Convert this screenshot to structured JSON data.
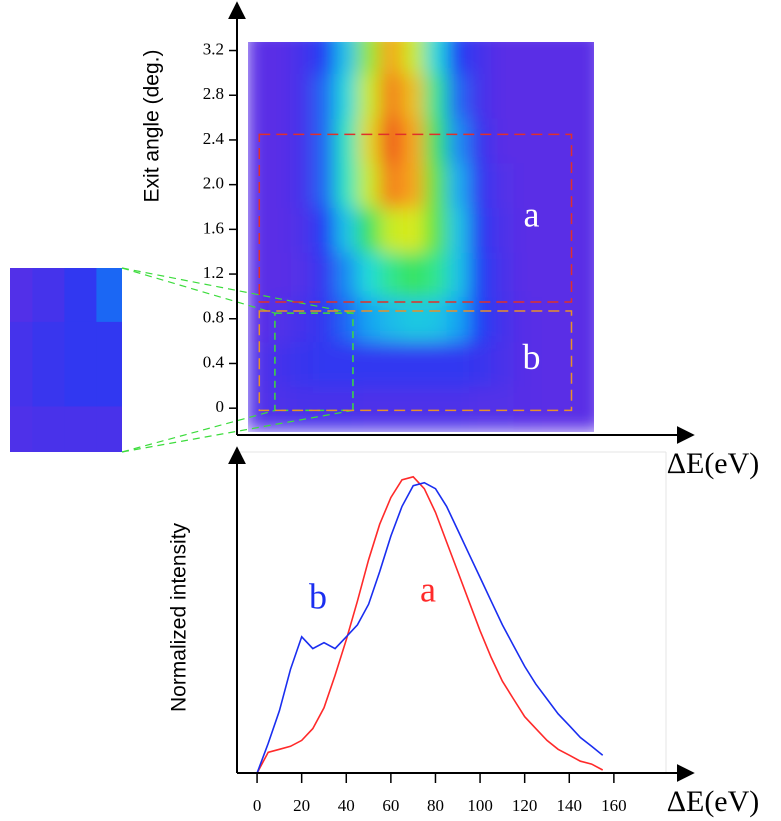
{
  "chart_data": [
    {
      "type": "heatmap",
      "xlabel": "ΔE(eV)",
      "ylabel": "Exit angle (deg.)",
      "xlim": [
        -9,
        191
      ],
      "ylim": [
        -0.24,
        3.5
      ],
      "yticks": [
        0,
        0.4,
        0.8,
        1.2,
        1.6,
        {
          "value": 2,
          "label": "2.0"
        },
        2.4,
        2.8,
        3.2
      ],
      "colorscale": [
        "#5a2ee6",
        "#1f3cf5",
        "#16a8f2",
        "#22e6d2",
        "#3de34a",
        "#d8ec1e",
        "#f7a21a",
        "#ee2a1a"
      ],
      "x": [
        0,
        10,
        20,
        30,
        40,
        50,
        60,
        70,
        80,
        90,
        100,
        110,
        120,
        130,
        140,
        150
      ],
      "y": [
        0,
        0.4,
        0.8,
        1.2,
        1.6,
        2.0,
        2.4,
        2.8,
        3.2
      ],
      "z": [
        [
          0.02,
          0.03,
          0.04,
          0.04,
          0.04,
          0.03,
          0.03,
          0.03,
          0.03,
          0.03,
          0.02,
          0.02,
          0.01,
          0,
          0,
          0
        ],
        [
          0.02,
          0.05,
          0.08,
          0.1,
          0.1,
          0.1,
          0.1,
          0.1,
          0.1,
          0.1,
          0.08,
          0.04,
          0.01,
          0,
          0,
          0
        ],
        [
          0,
          0.02,
          0.05,
          0.1,
          0.2,
          0.28,
          0.33,
          0.36,
          0.35,
          0.28,
          0.15,
          0.05,
          0.01,
          0,
          0,
          0
        ],
        [
          0,
          0,
          0.02,
          0.1,
          0.25,
          0.4,
          0.5,
          0.55,
          0.5,
          0.35,
          0.15,
          0.04,
          0,
          0,
          0,
          0
        ],
        [
          0,
          0,
          0.03,
          0.15,
          0.35,
          0.55,
          0.7,
          0.72,
          0.6,
          0.35,
          0.12,
          0.03,
          0,
          0,
          0,
          0
        ],
        [
          0,
          0,
          0.05,
          0.2,
          0.45,
          0.7,
          0.9,
          0.85,
          0.6,
          0.3,
          0.1,
          0.02,
          0,
          0,
          0,
          0
        ],
        [
          0,
          0,
          0.05,
          0.2,
          0.45,
          0.75,
          0.95,
          0.85,
          0.55,
          0.25,
          0.08,
          0,
          0,
          0,
          0,
          0
        ],
        [
          0,
          0,
          0.05,
          0.2,
          0.4,
          0.7,
          0.9,
          0.8,
          0.5,
          0.2,
          0.05,
          0,
          0,
          0,
          0,
          0
        ],
        [
          0,
          0,
          0.05,
          0.15,
          0.35,
          0.65,
          0.85,
          0.7,
          0.4,
          0.15,
          0.05,
          0,
          0,
          0,
          0,
          0
        ]
      ],
      "regions": [
        {
          "label": "a",
          "color": "#e0302a",
          "xlim": [
            1,
            141
          ],
          "ylim": [
            0.95,
            2.45
          ]
        },
        {
          "label": "b",
          "color": "#e8902a",
          "xlim": [
            1,
            141
          ],
          "ylim": [
            -0.02,
            0.87
          ]
        }
      ],
      "zoom_box": {
        "color": "#3ddc3d",
        "xlim": [
          8,
          43
        ],
        "ylim": [
          -0.02,
          0.85
        ]
      }
    },
    {
      "type": "line",
      "xlabel": "ΔE(eV)",
      "ylabel": "Normalized intensity",
      "xlim": [
        -9,
        191
      ],
      "ylim": [
        0,
        1.05
      ],
      "xticks": [
        0,
        20,
        40,
        60,
        80,
        100,
        120,
        140,
        160
      ],
      "x": [
        0,
        5,
        10,
        15,
        20,
        25,
        30,
        35,
        40,
        45,
        50,
        55,
        60,
        65,
        70,
        75,
        80,
        85,
        90,
        95,
        100,
        105,
        110,
        115,
        120,
        125,
        130,
        135,
        140,
        145,
        150,
        155
      ],
      "series": [
        {
          "name": "a",
          "color": "#ff2a2a",
          "values": [
            0,
            0.07,
            0.08,
            0.09,
            0.11,
            0.15,
            0.22,
            0.33,
            0.45,
            0.58,
            0.72,
            0.84,
            0.93,
            0.99,
            1.0,
            0.96,
            0.88,
            0.78,
            0.68,
            0.58,
            0.48,
            0.39,
            0.31,
            0.25,
            0.19,
            0.15,
            0.11,
            0.08,
            0.06,
            0.04,
            0.03,
            0.01
          ]
        },
        {
          "name": "b",
          "color": "#1a2ef0",
          "values": [
            0,
            0.1,
            0.21,
            0.35,
            0.46,
            0.42,
            0.44,
            0.42,
            0.46,
            0.5,
            0.57,
            0.68,
            0.8,
            0.9,
            0.97,
            0.98,
            0.96,
            0.9,
            0.82,
            0.74,
            0.66,
            0.58,
            0.5,
            0.43,
            0.36,
            0.3,
            0.25,
            0.2,
            0.16,
            0.12,
            0.09,
            0.06
          ]
        }
      ]
    }
  ]
}
